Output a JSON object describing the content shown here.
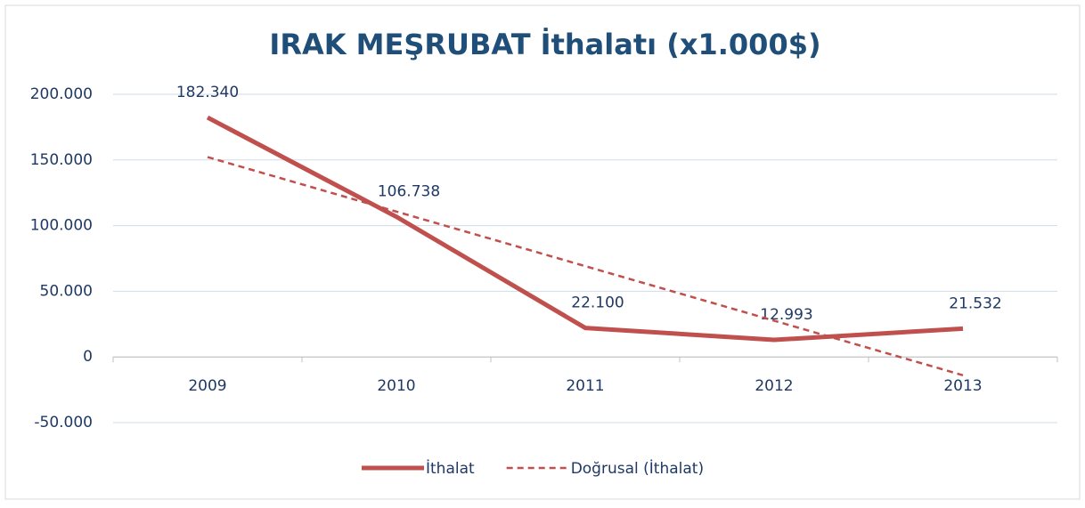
{
  "chart_data": {
    "type": "line",
    "title": "IRAK MEŞRUBAT İthalatı (x1.000$)",
    "categories": [
      "2009",
      "2010",
      "2011",
      "2012",
      "2013"
    ],
    "series": [
      {
        "name": "İthalat",
        "color": "#c0504d",
        "values": [
          182340,
          106738,
          22100,
          12993,
          21532
        ],
        "value_labels": [
          "182.340",
          "106.738",
          "22.100",
          "12.993",
          "21.532"
        ]
      },
      {
        "name": "Doğrusal (İthalat)",
        "color": "#c0504d",
        "dashed": true,
        "values": [
          152213,
          110677,
          69141,
          27605,
          -13932
        ]
      }
    ],
    "ylim": [
      -50000,
      200000
    ],
    "yticks": [
      {
        "value": -50000,
        "label": "-50.000"
      },
      0,
      {
        "value": 50000,
        "label": "50.000"
      },
      {
        "value": 100000,
        "label": "100.000"
      },
      {
        "value": 150000,
        "label": "150.000"
      },
      {
        "value": 200000,
        "label": "200.000"
      }
    ],
    "grid": true,
    "legend": "bottom"
  }
}
